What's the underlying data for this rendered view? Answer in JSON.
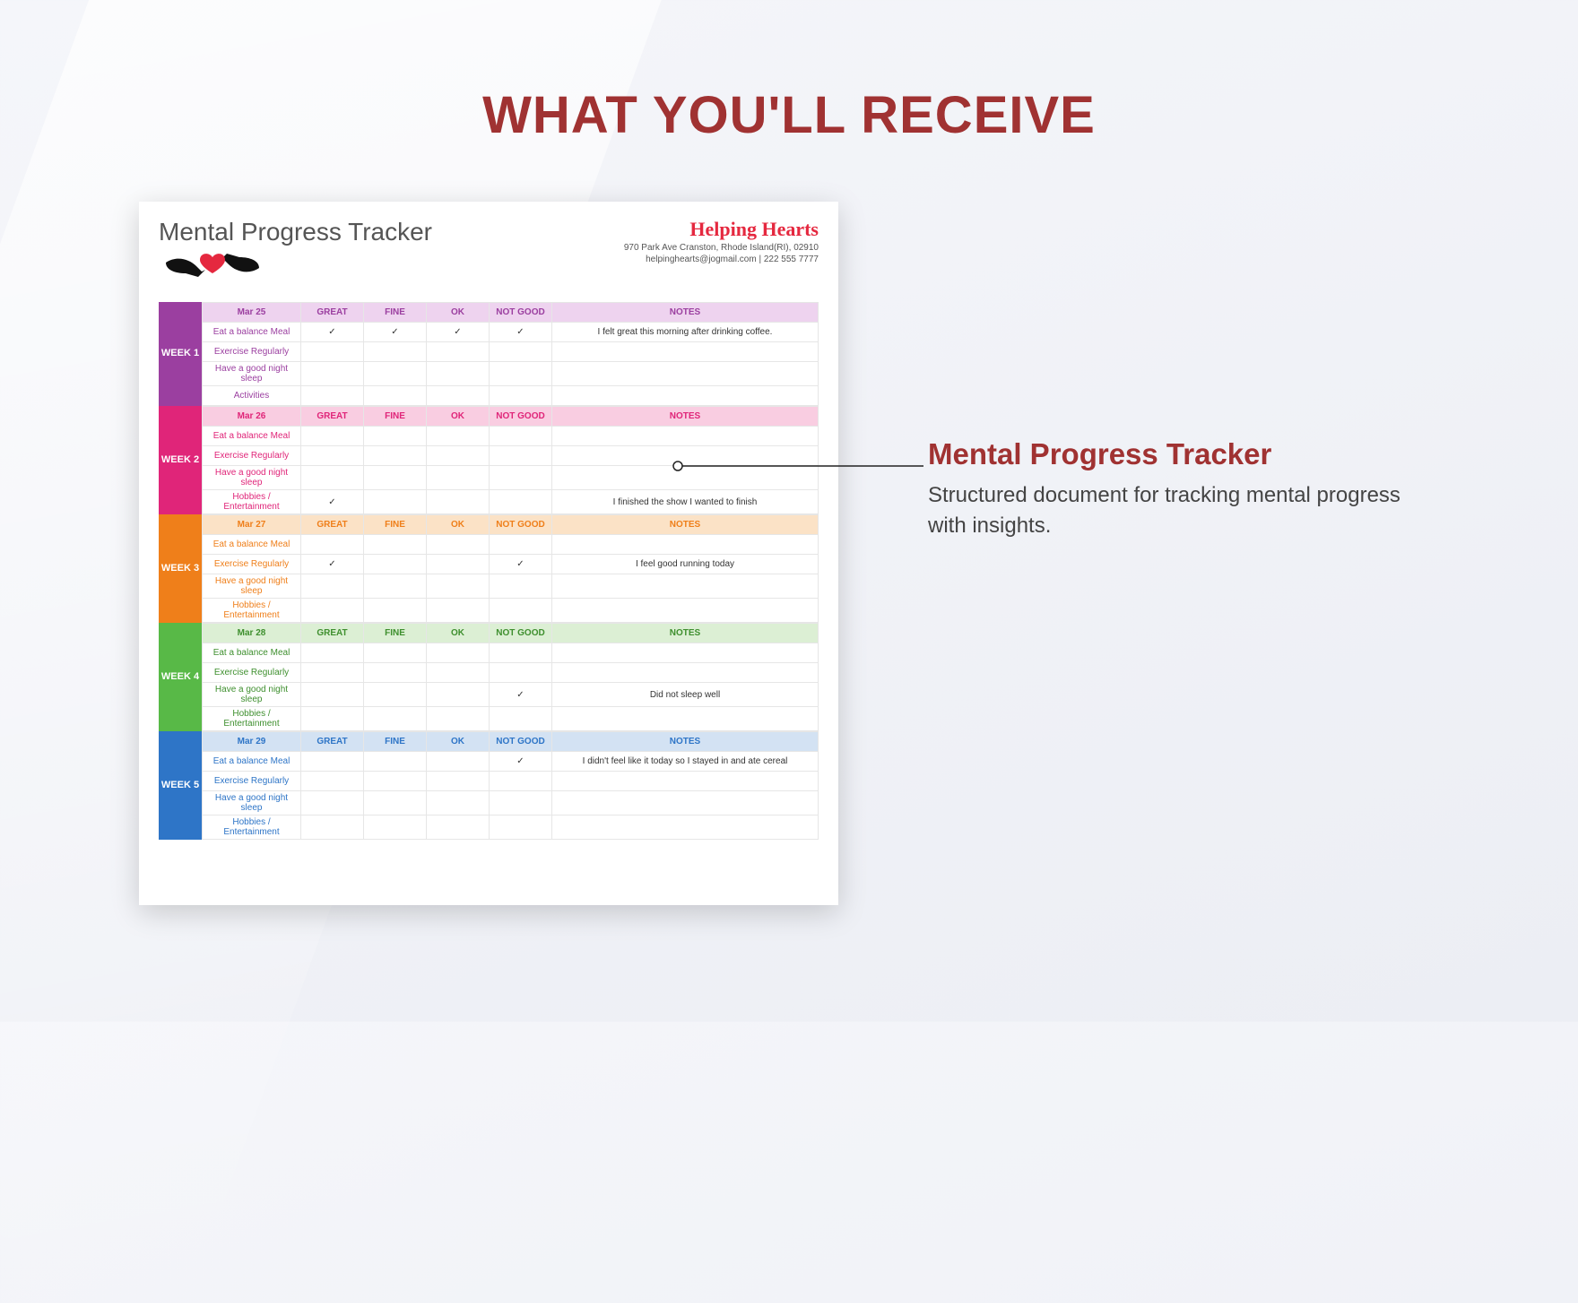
{
  "headline": "WHAT YOU'LL RECEIVE",
  "callout": {
    "title": "Mental Progress Tracker",
    "subtitle": "Structured document for tracking mental progress with insights."
  },
  "document": {
    "title": "Mental Progress Tracker",
    "brand": {
      "name": "Helping Hearts",
      "address": "970 Park Ave Cranston, Rhode Island(RI), 02910",
      "contact": "helpinghearts@jogmail.com | 222 555 7777"
    },
    "columns": [
      "GREAT",
      "FINE",
      "OK",
      "NOT GOOD",
      "NOTES"
    ],
    "row_labels": [
      "Eat a balance Meal",
      "Exercise Regularly",
      "Have a good night sleep",
      "Activities"
    ],
    "row_labels_alt": [
      "Eat a balance Meal",
      "Exercise Regularly",
      "Have a good night sleep",
      "Hobbies / Entertainment"
    ],
    "check": "✓",
    "weeks": [
      {
        "label": "WEEK 1",
        "date": "Mar 25",
        "color": "#9b3fa0",
        "header_bg": "#eed3ef",
        "text_color": "#9b3fa0",
        "rows": [
          {
            "label_key": 0,
            "checks": [
              "✓",
              "✓",
              "✓",
              "✓"
            ],
            "note": "I felt great this morning after drinking coffee."
          },
          {
            "label_key": 1,
            "checks": [
              "",
              "",
              "",
              ""
            ],
            "note": ""
          },
          {
            "label_key": 2,
            "checks": [
              "",
              "",
              "",
              ""
            ],
            "note": ""
          },
          {
            "label_key": 3,
            "checks": [
              "",
              "",
              "",
              ""
            ],
            "note": "",
            "use_base": true
          }
        ]
      },
      {
        "label": "WEEK 2",
        "date": "Mar 26",
        "color": "#e02579",
        "header_bg": "#f9cde1",
        "text_color": "#e02579",
        "rows": [
          {
            "label_key": 0,
            "checks": [
              "",
              "",
              "",
              ""
            ],
            "note": ""
          },
          {
            "label_key": 1,
            "checks": [
              "",
              "",
              "",
              ""
            ],
            "note": ""
          },
          {
            "label_key": 2,
            "checks": [
              "",
              "",
              "",
              ""
            ],
            "note": ""
          },
          {
            "label_key": 3,
            "checks": [
              "✓",
              "",
              "",
              ""
            ],
            "note": "I finished the show I wanted to finish"
          }
        ]
      },
      {
        "label": "WEEK 3",
        "date": "Mar 27",
        "color": "#ef7f1a",
        "header_bg": "#fbe2c6",
        "text_color": "#ef7f1a",
        "rows": [
          {
            "label_key": 0,
            "checks": [
              "",
              "",
              "",
              ""
            ],
            "note": ""
          },
          {
            "label_key": 1,
            "checks": [
              "✓",
              "",
              "",
              "✓"
            ],
            "note": "I feel good running today"
          },
          {
            "label_key": 2,
            "checks": [
              "",
              "",
              "",
              ""
            ],
            "note": ""
          },
          {
            "label_key": 3,
            "checks": [
              "",
              "",
              "",
              ""
            ],
            "note": ""
          }
        ]
      },
      {
        "label": "WEEK 4",
        "date": "Mar 28",
        "color": "#58b947",
        "header_bg": "#dcefd4",
        "text_color": "#3e8f2e",
        "rows": [
          {
            "label_key": 0,
            "checks": [
              "",
              "",
              "",
              ""
            ],
            "note": ""
          },
          {
            "label_key": 1,
            "checks": [
              "",
              "",
              "",
              ""
            ],
            "note": ""
          },
          {
            "label_key": 2,
            "checks": [
              "",
              "",
              "",
              "✓"
            ],
            "note": "Did not sleep well"
          },
          {
            "label_key": 3,
            "checks": [
              "",
              "",
              "",
              ""
            ],
            "note": ""
          }
        ]
      },
      {
        "label": "WEEK 5",
        "date": "Mar 29",
        "color": "#2e75c7",
        "header_bg": "#d3e2f3",
        "text_color": "#2e75c7",
        "rows": [
          {
            "label_key": 0,
            "checks": [
              "",
              "",
              "",
              "✓"
            ],
            "note": "I didn't feel like it today so I stayed in and ate cereal"
          },
          {
            "label_key": 1,
            "checks": [
              "",
              "",
              "",
              ""
            ],
            "note": ""
          },
          {
            "label_key": 2,
            "checks": [
              "",
              "",
              "",
              ""
            ],
            "note": ""
          },
          {
            "label_key": 3,
            "checks": [
              "",
              "",
              "",
              ""
            ],
            "note": ""
          }
        ]
      }
    ]
  },
  "styling": {
    "page_bg": "#f0f1f6",
    "headline_color": "#a03232",
    "headline_fontsize": 58,
    "doc_bg": "#ffffff",
    "doc_shadow": "0 8px 30px rgba(0,0,0,0.18)",
    "table_border": "#e6e6e6",
    "connector_color": "#222222"
  }
}
